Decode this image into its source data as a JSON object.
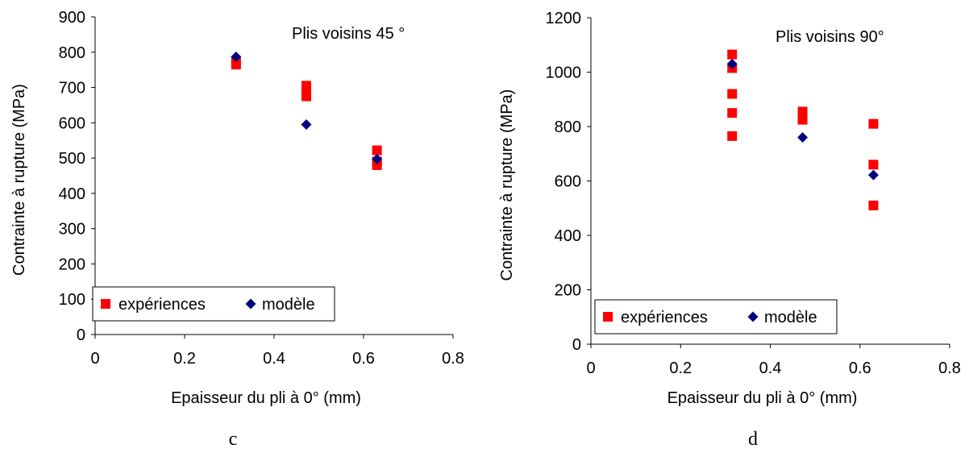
{
  "chart_data": [
    {
      "type": "scatter",
      "panel_label": "c",
      "annotation": "Plis voisins 45 °",
      "xlabel": "Epaisseur du pli à 0° (mm)",
      "ylabel": "Contrainte à rupture (MPa)",
      "xlim": [
        0,
        0.8
      ],
      "ylim": [
        0,
        900
      ],
      "xticks": [
        0,
        0.2,
        0.4,
        0.6,
        0.8
      ],
      "yticks": [
        0,
        100,
        200,
        300,
        400,
        500,
        600,
        700,
        800,
        900
      ],
      "grid": false,
      "legend": "bottom-left",
      "series": [
        {
          "name": "expériences",
          "marker": "square",
          "color": "#ff0000",
          "x": [
            0.315,
            0.315,
            0.472,
            0.472,
            0.472,
            0.472,
            0.63,
            0.63,
            0.63
          ],
          "y": [
            765,
            775,
            705,
            690,
            680,
            675,
            522,
            490,
            480
          ]
        },
        {
          "name": "modèle",
          "marker": "diamond",
          "color": "#000080",
          "x": [
            0.315,
            0.472,
            0.63
          ],
          "y": [
            787,
            595,
            497
          ]
        }
      ]
    },
    {
      "type": "scatter",
      "panel_label": "d",
      "annotation": "Plis voisins 90°",
      "xlabel": "Epaisseur du pli à 0° (mm)",
      "ylabel": "Contrainte à rupture (MPa)",
      "xlim": [
        0,
        0.8
      ],
      "ylim": [
        0,
        1200
      ],
      "xticks": [
        0,
        0.2,
        0.4,
        0.6,
        0.8
      ],
      "yticks": [
        0,
        200,
        400,
        600,
        800,
        1000,
        1200
      ],
      "grid": false,
      "legend": "bottom-left",
      "series": [
        {
          "name": "expériences",
          "marker": "square",
          "color": "#ff0000",
          "x": [
            0.315,
            0.315,
            0.315,
            0.315,
            0.315,
            0.472,
            0.472,
            0.63,
            0.63,
            0.63
          ],
          "y": [
            1065,
            1015,
            920,
            850,
            765,
            855,
            825,
            810,
            660,
            510
          ]
        },
        {
          "name": "modèle",
          "marker": "diamond",
          "color": "#000080",
          "x": [
            0.315,
            0.472,
            0.63
          ],
          "y": [
            1030,
            760,
            622
          ]
        }
      ]
    }
  ]
}
